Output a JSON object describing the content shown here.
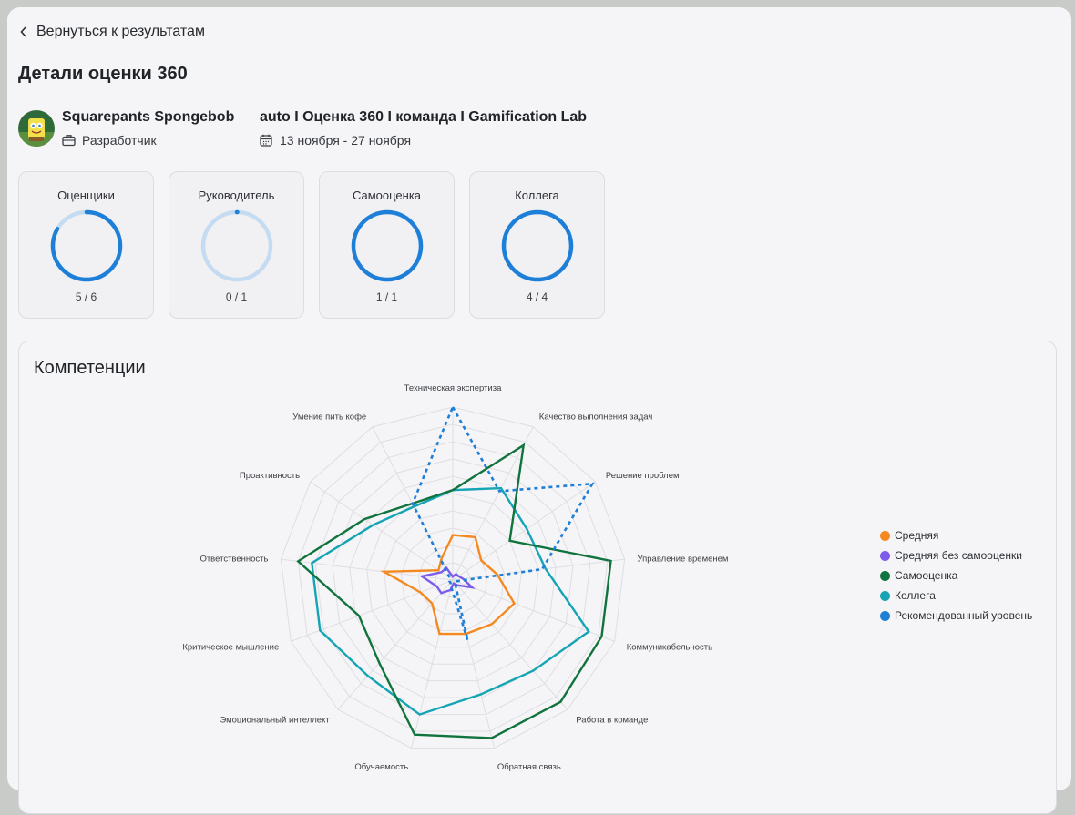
{
  "nav": {
    "back_label": "Вернуться к результатам"
  },
  "page": {
    "title": "Детали оценки 360"
  },
  "person": {
    "name": "Squarepants Spongebob",
    "role": "Разработчик"
  },
  "campaign": {
    "name": "auto I Оценка 360 I команда I Gamification Lab",
    "dates": "13 ноября - 27 ноября"
  },
  "stats": [
    {
      "label": "Оценщики",
      "value": "5 / 6",
      "progress": 0.833
    },
    {
      "label": "Руководитель",
      "value": "0 / 1",
      "progress": 0
    },
    {
      "label": "Самооценка",
      "value": "1 / 1",
      "progress": 1
    },
    {
      "label": "Коллега",
      "value": "4 / 4",
      "progress": 1
    }
  ],
  "colors": {
    "ring_fill": "#1e7fd8",
    "ring_track": "#c5dbf1",
    "avg": "#f5891f",
    "avg_no_self": "#7c5ce9",
    "self": "#11743e",
    "colleague": "#14a4b4",
    "recommended": "#1e7fd8"
  },
  "competencies": {
    "title": "Компетенции",
    "legend": [
      "Средняя",
      "Средняя без самооценки",
      "Самооценка",
      "Коллега",
      "Рекомендованный уровень"
    ]
  },
  "chart_data": {
    "type": "radar",
    "axes": [
      "Техническая экспертиза",
      "Качество выполнения задач",
      "Решение проблем",
      "Управление временем",
      "Коммуникабельность",
      "Работа в команде",
      "Обратная связь",
      "Обучаемость",
      "Эмоциональный интеллект",
      "Критическое мышление",
      "Ответственность",
      "Проактивность",
      "Умение пить кофе"
    ],
    "range": [
      0,
      5
    ],
    "grid_levels": 10,
    "series": [
      {
        "name": "Средняя",
        "values": [
          1.3,
          1.4,
          1.0,
          1.3,
          1.9,
          1.7,
          1.6,
          1.6,
          0.9,
          1.0,
          2.0,
          0.5,
          0.7
        ]
      },
      {
        "name": "Средняя без самооценки",
        "values": [
          0.1,
          0.2,
          0.2,
          0.3,
          0.6,
          0.2,
          0.1,
          0.3,
          0.5,
          0.5,
          0.9,
          0.4,
          0.4
        ]
      },
      {
        "name": "Самооценка",
        "values": [
          2.6,
          4.4,
          2.0,
          4.6,
          4.6,
          4.7,
          4.7,
          4.6,
          3.2,
          2.9,
          4.5,
          3.1,
          2.5
        ]
      },
      {
        "name": "Коллега",
        "values": [
          2.6,
          3.0,
          2.6,
          2.7,
          4.2,
          3.5,
          3.4,
          4.0,
          3.7,
          4.1,
          4.1,
          2.8,
          2.4
        ]
      },
      {
        "name": "Рекомендованный уровень",
        "values": [
          5.0,
          2.9,
          4.9,
          2.6,
          0.1,
          0.1,
          1.8,
          0.2,
          0.1,
          0.1,
          0.1,
          0.1,
          2.5
        ]
      }
    ]
  }
}
